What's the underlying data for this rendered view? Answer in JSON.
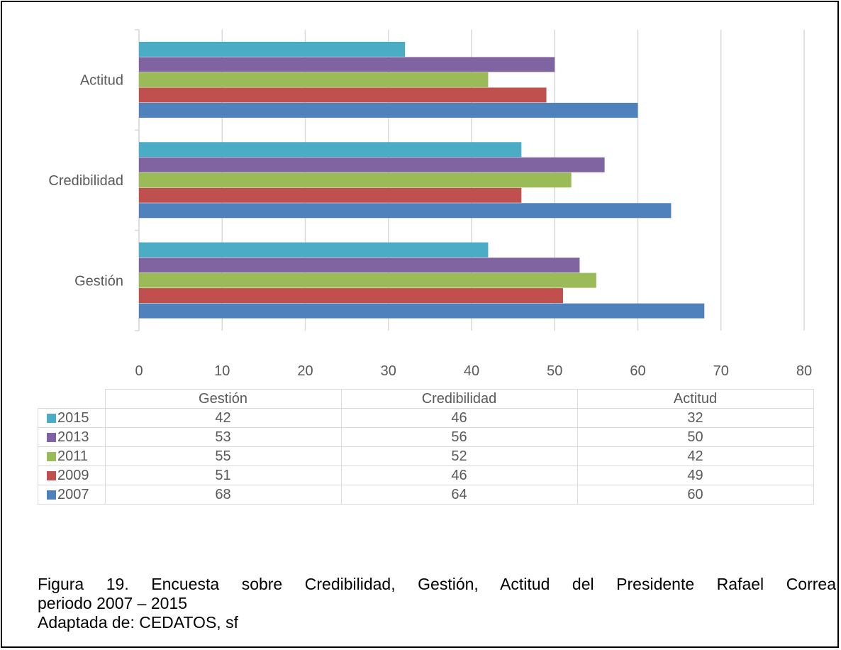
{
  "chart_data": {
    "type": "bar",
    "orientation": "horizontal",
    "categories": [
      "Gestión",
      "Credibilidad",
      "Actitud"
    ],
    "series": [
      {
        "name": "2015",
        "color": "#4bacc6",
        "values": [
          42,
          46,
          32
        ]
      },
      {
        "name": "2013",
        "color": "#8064a2",
        "values": [
          53,
          56,
          50
        ]
      },
      {
        "name": "2011",
        "color": "#9bbb59",
        "values": [
          55,
          52,
          42
        ]
      },
      {
        "name": "2009",
        "color": "#c0504d",
        "values": [
          51,
          46,
          49
        ]
      },
      {
        "name": "2007",
        "color": "#4f81bd",
        "values": [
          68,
          64,
          60
        ]
      }
    ],
    "xlim": [
      0,
      80
    ],
    "xticks": [
      "0",
      "10",
      "20",
      "30",
      "40",
      "50",
      "60",
      "70",
      "80"
    ],
    "grid": true,
    "legend": "data table below chart"
  },
  "caption": {
    "line1": "Figura 19. Encuesta sobre Credibilidad, Gestión, Actitud del Presidente Rafael Correa",
    "line2": "periodo 2007 – 2015",
    "line3": "Adaptada de: CEDATOS, sf"
  }
}
